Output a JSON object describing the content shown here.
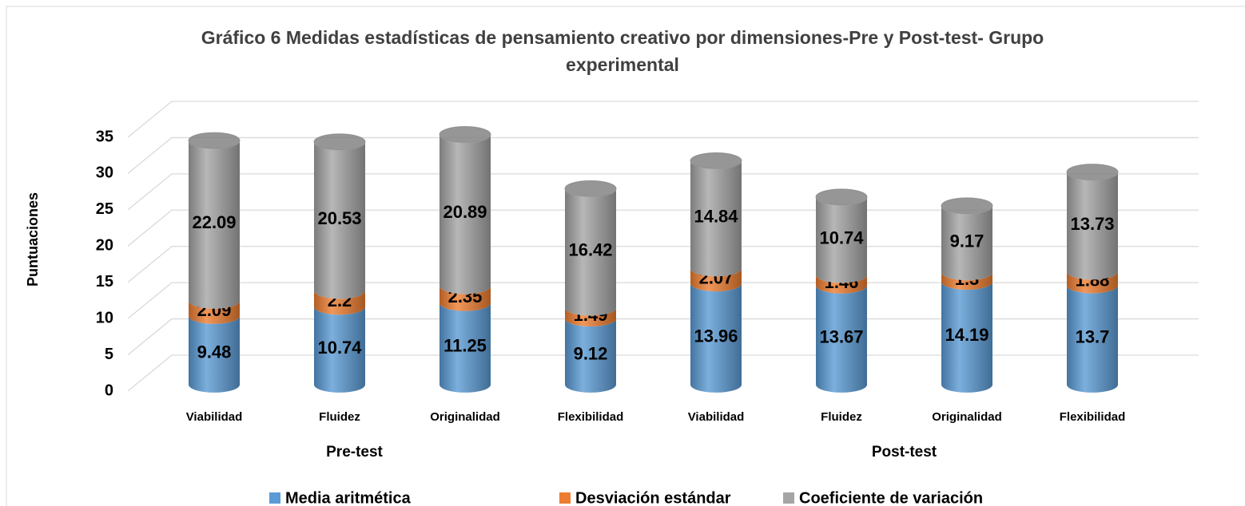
{
  "chart_data": {
    "type": "stacked-cylinder",
    "title": "Gráfico 6 Medidas estadísticas de pensamiento creativo por dimensiones-Pre y Post-test- Grupo experimental",
    "y_label": "Puntuaciones",
    "categories": [
      "Viabilidad",
      "Fluidez",
      "Originalidad",
      "Flexibilidad",
      "Viabilidad",
      "Fluidez",
      "Originalidad",
      "Flexibilidad"
    ],
    "groups": [
      "Pre-test",
      "Post-test"
    ],
    "series": [
      {
        "name": "Media aritmética",
        "color": "#5b9bd5",
        "values": [
          9.48,
          10.74,
          11.25,
          9.12,
          13.96,
          13.67,
          14.19,
          13.7
        ]
      },
      {
        "name": "Desviación estándar",
        "color": "#ed7d31",
        "values": [
          2.09,
          2.2,
          2.35,
          1.49,
          2.07,
          1.46,
          1.3,
          1.88
        ]
      },
      {
        "name": "Coeficiente de variación",
        "color": "#a5a5a5",
        "values": [
          22.09,
          20.53,
          20.89,
          16.42,
          14.84,
          10.74,
          9.17,
          13.73
        ]
      }
    ],
    "ylim": [
      0,
      35
    ],
    "yticks": [
      0,
      5,
      10,
      15,
      20,
      25,
      30,
      35
    ],
    "grid": true,
    "legend": "bottom"
  }
}
